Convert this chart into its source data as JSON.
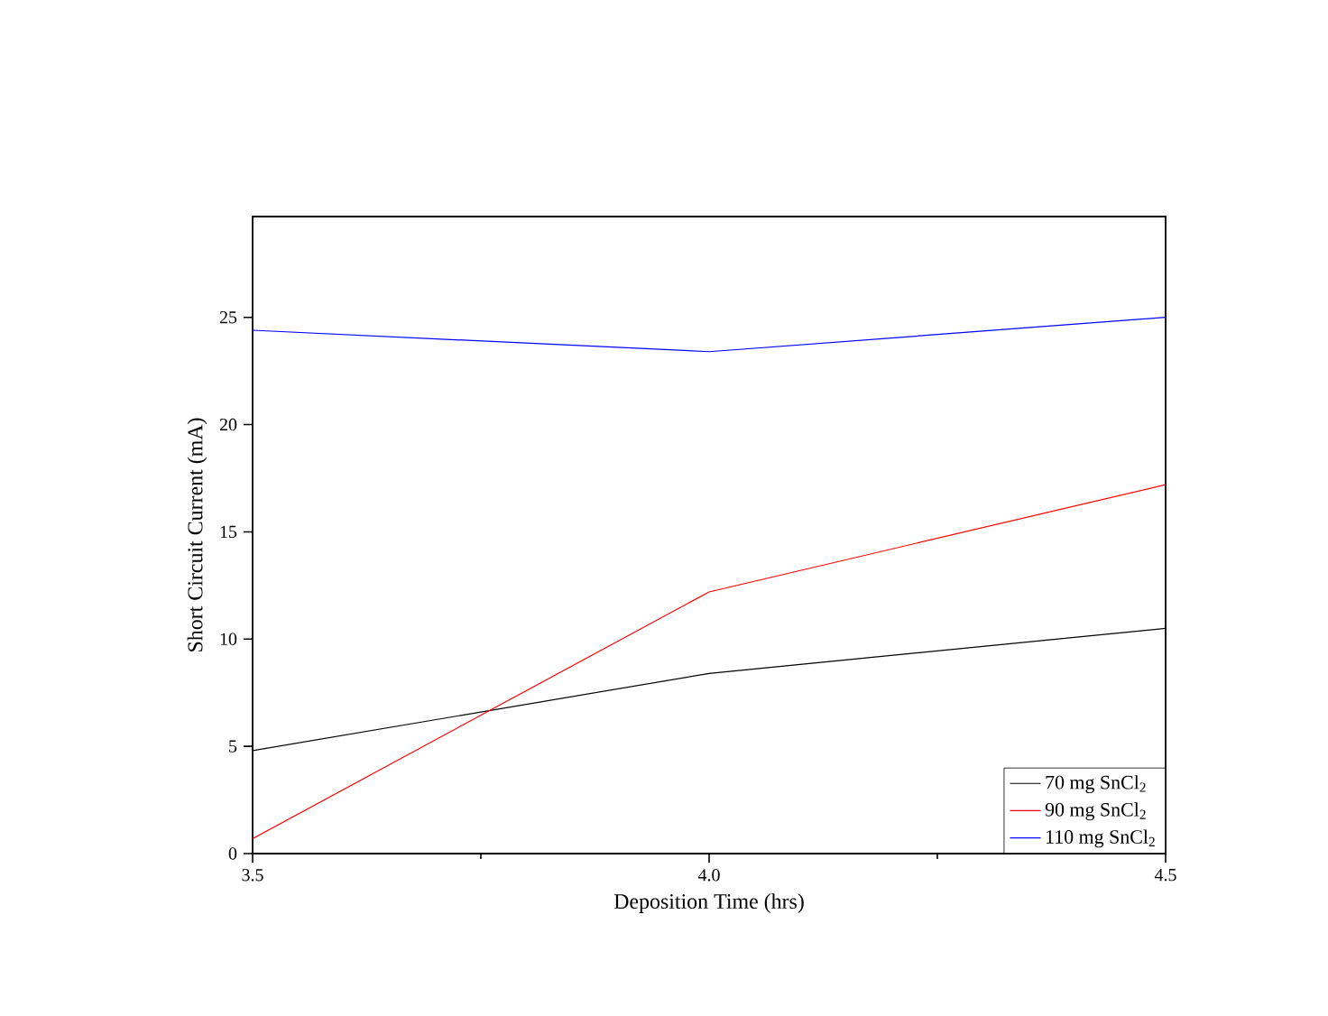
{
  "chart_data": {
    "type": "line",
    "xlabel": "Deposition Time (hrs)",
    "ylabel": "Short Circuit Current (mA)",
    "x": [
      3.5,
      4.0,
      4.5
    ],
    "series": [
      {
        "name": "70 mg SnCl$_{2}$",
        "color": "#000000",
        "values": [
          4.8,
          8.4,
          10.5
        ]
      },
      {
        "name": "90 mg SnCl$_{2}$",
        "color": "#ff0000",
        "values": [
          0.7,
          12.2,
          17.2
        ]
      },
      {
        "name": "110 mg SnCl$_{2}$",
        "color": "#0000ff",
        "values": [
          24.4,
          23.4,
          25.0
        ]
      }
    ],
    "xlim": [
      3.5,
      4.5
    ],
    "ylim": [
      0,
      29.7
    ],
    "xticks": [
      {
        "value": 3.5,
        "label": "3.5"
      },
      {
        "value": 4.0,
        "label": "4.0"
      },
      {
        "value": 4.5,
        "label": "4.5"
      }
    ],
    "yticks": [
      0,
      5,
      10,
      15,
      20,
      25
    ],
    "legend": "bottom right",
    "grid": false,
    "marker": "none",
    "line_style": "solid"
  }
}
